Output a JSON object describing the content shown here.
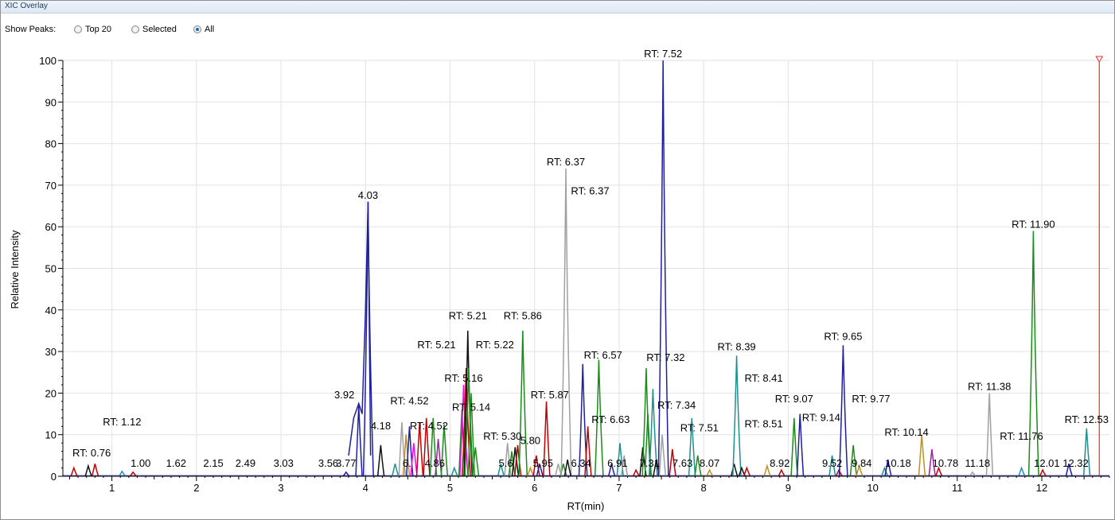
{
  "window": {
    "title": "XIC Overlay"
  },
  "controls": {
    "show_peaks_label": "Show Peaks:",
    "options": [
      {
        "label": "Top 20",
        "selected": false
      },
      {
        "label": "Selected",
        "selected": false
      },
      {
        "label": "All",
        "selected": true
      }
    ]
  },
  "chart_data": {
    "type": "line",
    "xlabel": "RT(min)",
    "ylabel": "Relative Intensity",
    "xlim": [
      0.42,
      12.8
    ],
    "ylim": [
      0,
      100
    ],
    "x_ticks": [
      "1",
      "2",
      "3",
      "4",
      "5",
      "6",
      "7",
      "8",
      "9",
      "10",
      "11",
      "12"
    ],
    "y_ticks": [
      "0",
      "10",
      "20",
      "30",
      "40",
      "50",
      "60",
      "70",
      "80",
      "90",
      "100"
    ],
    "grid": true,
    "marker_line_rt": 12.68,
    "peaks": [
      {
        "rt": 0.55,
        "h": 2,
        "c": "#c00000"
      },
      {
        "rt": 0.72,
        "h": 2.5,
        "c": "#111111"
      },
      {
        "rt": 0.8,
        "h": 3,
        "c": "#c00000"
      },
      {
        "rt": 1.12,
        "h": 1.2,
        "c": "#2e8bc0"
      },
      {
        "rt": 1.25,
        "h": 1,
        "c": "#c00000"
      },
      {
        "rt": 3.77,
        "h": 1,
        "c": "#1f1fa0"
      },
      {
        "rt": 3.92,
        "h": 17,
        "c": "#1f1fa0"
      },
      {
        "rt": 4.03,
        "h": 66,
        "c": "#1f1fa0"
      },
      {
        "rt": 4.18,
        "h": 7.5,
        "c": "#111111"
      },
      {
        "rt": 4.35,
        "h": 3,
        "c": "#1f9090"
      },
      {
        "rt": 4.43,
        "h": 13,
        "c": "#a0a0a0"
      },
      {
        "rt": 4.48,
        "h": 10,
        "c": "#c09020"
      },
      {
        "rt": 4.52,
        "h": 12,
        "c": "#1f1fa0"
      },
      {
        "rt": 4.57,
        "h": 8,
        "c": "#ff00ff"
      },
      {
        "rt": 4.64,
        "h": 13,
        "c": "#c00000"
      },
      {
        "rt": 4.72,
        "h": 14,
        "c": "#c00000"
      },
      {
        "rt": 4.8,
        "h": 14,
        "c": "#1a8c1a"
      },
      {
        "rt": 4.86,
        "h": 9,
        "c": "#a020a0"
      },
      {
        "rt": 4.93,
        "h": 12.5,
        "c": "#1a8c1a"
      },
      {
        "rt": 5.05,
        "h": 2,
        "c": "#1f9090"
      },
      {
        "rt": 5.14,
        "h": 16,
        "c": "#1a8c1a"
      },
      {
        "rt": 5.16,
        "h": 22,
        "c": "#ff00ff"
      },
      {
        "rt": 5.19,
        "h": 26,
        "c": "#c00000"
      },
      {
        "rt": 5.21,
        "h": 35,
        "c": "#111111"
      },
      {
        "rt": 5.22,
        "h": 26,
        "c": "#1a8c1a"
      },
      {
        "rt": 5.25,
        "h": 20,
        "c": "#1a8c1a"
      },
      {
        "rt": 5.3,
        "h": 7,
        "c": "#1a8c1a"
      },
      {
        "rt": 5.6,
        "h": 3,
        "c": "#1f9090"
      },
      {
        "rt": 5.68,
        "h": 8,
        "c": "#a0a0a0"
      },
      {
        "rt": 5.73,
        "h": 6,
        "c": "#1a8c1a"
      },
      {
        "rt": 5.77,
        "h": 7,
        "c": "#111111"
      },
      {
        "rt": 5.8,
        "h": 7.5,
        "c": "#c00000"
      },
      {
        "rt": 5.86,
        "h": 35,
        "c": "#1a8c1a"
      },
      {
        "rt": 5.95,
        "h": 2,
        "c": "#c09020"
      },
      {
        "rt": 6.02,
        "h": 5,
        "c": "#c00000"
      },
      {
        "rt": 6.06,
        "h": 3,
        "c": "#1f1fa0"
      },
      {
        "rt": 6.14,
        "h": 18,
        "c": "#c00000"
      },
      {
        "rt": 6.28,
        "h": 3,
        "c": "#a0a0a0"
      },
      {
        "rt": 6.34,
        "h": 3,
        "c": "#1a8c1a"
      },
      {
        "rt": 6.37,
        "h": 74,
        "c": "#a0a0a0"
      },
      {
        "rt": 6.39,
        "h": 4,
        "c": "#111111"
      },
      {
        "rt": 6.57,
        "h": 27,
        "c": "#1f1fa0"
      },
      {
        "rt": 6.63,
        "h": 12,
        "c": "#c00000"
      },
      {
        "rt": 6.76,
        "h": 28,
        "c": "#1a8c1a"
      },
      {
        "rt": 6.91,
        "h": 3,
        "c": "#1f1fa0"
      },
      {
        "rt": 7.01,
        "h": 8,
        "c": "#1f9090"
      },
      {
        "rt": 7.06,
        "h": 5,
        "c": "#a0a0a0"
      },
      {
        "rt": 7.2,
        "h": 1.5,
        "c": "#c00000"
      },
      {
        "rt": 7.28,
        "h": 7,
        "c": "#111111"
      },
      {
        "rt": 7.32,
        "h": 26,
        "c": "#1a8c1a"
      },
      {
        "rt": 7.34,
        "h": 15,
        "c": "#1a8c1a"
      },
      {
        "rt": 7.4,
        "h": 21,
        "c": "#1f9090"
      },
      {
        "rt": 7.44,
        "h": 4,
        "c": "#111111"
      },
      {
        "rt": 7.51,
        "h": 10,
        "c": "#a0a0a0"
      },
      {
        "rt": 7.52,
        "h": 100,
        "c": "#1f1fa0"
      },
      {
        "rt": 7.63,
        "h": 6.5,
        "c": "#c00000"
      },
      {
        "rt": 7.86,
        "h": 14,
        "c": "#1f9090"
      },
      {
        "rt": 7.93,
        "h": 5,
        "c": "#1a8c1a"
      },
      {
        "rt": 8.07,
        "h": 1.5,
        "c": "#c09020"
      },
      {
        "rt": 8.36,
        "h": 3,
        "c": "#111111"
      },
      {
        "rt": 8.39,
        "h": 29,
        "c": "#1f9090"
      },
      {
        "rt": 8.45,
        "h": 2,
        "c": "#111111"
      },
      {
        "rt": 8.51,
        "h": 2,
        "c": "#c00000"
      },
      {
        "rt": 8.75,
        "h": 2.5,
        "c": "#c09020"
      },
      {
        "rt": 8.92,
        "h": 1.5,
        "c": "#c00000"
      },
      {
        "rt": 9.07,
        "h": 14,
        "c": "#1a8c1a"
      },
      {
        "rt": 9.14,
        "h": 15,
        "c": "#1f1fa0"
      },
      {
        "rt": 9.52,
        "h": 5,
        "c": "#1f9090"
      },
      {
        "rt": 9.6,
        "h": 1.5,
        "c": "#c00000"
      },
      {
        "rt": 9.65,
        "h": 31.5,
        "c": "#1f1fa0"
      },
      {
        "rt": 9.77,
        "h": 7.5,
        "c": "#1a8c1a"
      },
      {
        "rt": 9.84,
        "h": 2.5,
        "c": "#c09020"
      },
      {
        "rt": 10.14,
        "h": 2,
        "c": "#1f9090"
      },
      {
        "rt": 10.18,
        "h": 4,
        "c": "#1f1fa0"
      },
      {
        "rt": 10.58,
        "h": 10,
        "c": "#c09020"
      },
      {
        "rt": 10.7,
        "h": 6.5,
        "c": "#a020a0"
      },
      {
        "rt": 10.78,
        "h": 2,
        "c": "#c00000"
      },
      {
        "rt": 11.18,
        "h": 1,
        "c": "#a0a0a0"
      },
      {
        "rt": 11.38,
        "h": 20,
        "c": "#a0a0a0"
      },
      {
        "rt": 11.76,
        "h": 2,
        "c": "#2e8bc0"
      },
      {
        "rt": 11.9,
        "h": 59,
        "c": "#1a8c1a"
      },
      {
        "rt": 12.01,
        "h": 1.5,
        "c": "#c00000"
      },
      {
        "rt": 12.32,
        "h": 3,
        "c": "#1f1fa0"
      },
      {
        "rt": 12.53,
        "h": 11.5,
        "c": "#1f9090"
      }
    ],
    "labels": [
      {
        "text": "RT: 7.52",
        "rt": 7.52,
        "h": 100,
        "anchor": "middle"
      },
      {
        "text": "RT: 6.37",
        "rt": 6.37,
        "h": 74,
        "anchor": "middle"
      },
      {
        "text": "RT: 6.37",
        "rt": 6.43,
        "h": 67,
        "anchor": "start"
      },
      {
        "text": "4.03",
        "rt": 4.03,
        "h": 66,
        "anchor": "middle"
      },
      {
        "text": "RT: 11.90",
        "rt": 11.9,
        "h": 59,
        "anchor": "middle"
      },
      {
        "text": "RT: 5.21",
        "rt": 5.21,
        "h": 37,
        "anchor": "middle"
      },
      {
        "text": "RT: 5.86",
        "rt": 5.86,
        "h": 37,
        "anchor": "middle"
      },
      {
        "text": "RT: 5.21",
        "rt": 4.84,
        "h": 30,
        "anchor": "middle"
      },
      {
        "text": "RT: 5.22",
        "rt": 5.53,
        "h": 30,
        "anchor": "middle"
      },
      {
        "text": "RT: 8.39",
        "rt": 8.39,
        "h": 29.5,
        "anchor": "middle"
      },
      {
        "text": "RT: 9.65",
        "rt": 9.65,
        "h": 32,
        "anchor": "middle"
      },
      {
        "text": "RT: 6.57",
        "rt": 6.81,
        "h": 27.5,
        "anchor": "middle"
      },
      {
        "text": "RT: 7.32",
        "rt": 7.55,
        "h": 27,
        "anchor": "middle"
      },
      {
        "text": "RT: 5.16",
        "rt": 5.16,
        "h": 22,
        "anchor": "middle"
      },
      {
        "text": "RT: 8.41",
        "rt": 8.71,
        "h": 22,
        "anchor": "middle"
      },
      {
        "text": "RT: 11.38",
        "rt": 11.38,
        "h": 20,
        "anchor": "middle"
      },
      {
        "text": "3.92",
        "rt": 3.75,
        "h": 18,
        "anchor": "middle"
      },
      {
        "text": "RT: 5.87",
        "rt": 6.18,
        "h": 18,
        "anchor": "middle"
      },
      {
        "text": "RT: 9.07",
        "rt": 9.07,
        "h": 17,
        "anchor": "middle"
      },
      {
        "text": "RT: 9.77",
        "rt": 9.98,
        "h": 17,
        "anchor": "middle"
      },
      {
        "text": "RT: 4.52",
        "rt": 4.52,
        "h": 16.5,
        "anchor": "middle"
      },
      {
        "text": "RT: 7.34",
        "rt": 7.68,
        "h": 15.5,
        "anchor": "middle"
      },
      {
        "text": "RT: 5.14",
        "rt": 5.25,
        "h": 15,
        "anchor": "middle"
      },
      {
        "text": "RT: 9.14",
        "rt": 9.39,
        "h": 12.5,
        "anchor": "middle"
      },
      {
        "text": "RT: 12.53",
        "rt": 12.53,
        "h": 12,
        "anchor": "middle"
      },
      {
        "text": "RT: 6.63",
        "rt": 6.9,
        "h": 12,
        "anchor": "middle"
      },
      {
        "text": "RT: 1.12",
        "rt": 1.12,
        "h": 11.5,
        "anchor": "middle"
      },
      {
        "text": "4.18",
        "rt": 4.3,
        "h": 10.5,
        "anchor": "end"
      },
      {
        "text": "RT: 4.52",
        "rt": 4.75,
        "h": 10.5,
        "anchor": "middle"
      },
      {
        "text": "RT: 7.51",
        "rt": 7.95,
        "h": 10,
        "anchor": "middle"
      },
      {
        "text": "RT: 8.51",
        "rt": 8.71,
        "h": 11,
        "anchor": "middle"
      },
      {
        "text": "RT: 10.14",
        "rt": 10.4,
        "h": 9,
        "anchor": "middle"
      },
      {
        "text": "RT: 11.76",
        "rt": 11.76,
        "h": 8,
        "anchor": "middle"
      },
      {
        "text": "RT: 5.30",
        "rt": 5.62,
        "h": 8,
        "anchor": "middle"
      },
      {
        "text": "5.80",
        "rt": 5.95,
        "h": 7,
        "anchor": "middle"
      },
      {
        "text": "RT: 0.76",
        "rt": 0.76,
        "h": 4,
        "anchor": "middle"
      },
      {
        "text": "1.00",
        "rt": 1.34,
        "h": 1.5,
        "anchor": "middle"
      },
      {
        "text": "1.62",
        "rt": 1.76,
        "h": 1.5,
        "anchor": "middle"
      },
      {
        "text": "2.15",
        "rt": 2.2,
        "h": 1.5,
        "anchor": "middle"
      },
      {
        "text": "2.49",
        "rt": 2.58,
        "h": 1.5,
        "anchor": "middle"
      },
      {
        "text": "3.03",
        "rt": 3.03,
        "h": 1.5,
        "anchor": "middle"
      },
      {
        "text": "3.56",
        "rt": 3.56,
        "h": 1.5,
        "anchor": "middle"
      },
      {
        "text": "3.77",
        "rt": 3.77,
        "h": 1.5,
        "anchor": "middle"
      },
      {
        "text": "6.",
        "rt": 4.49,
        "h": 1.5,
        "anchor": "middle"
      },
      {
        "text": "4.86",
        "rt": 4.82,
        "h": 1.5,
        "anchor": "middle"
      },
      {
        "text": "5.6",
        "rt": 5.66,
        "h": 1.5,
        "anchor": "middle"
      },
      {
        "text": "5.95",
        "rt": 6.1,
        "h": 1.5,
        "anchor": "middle"
      },
      {
        "text": "6.34",
        "rt": 6.55,
        "h": 1.5,
        "anchor": "middle"
      },
      {
        "text": "6.91",
        "rt": 6.98,
        "h": 1.5,
        "anchor": "middle"
      },
      {
        "text": "7.31",
        "rt": 7.36,
        "h": 1.5,
        "anchor": "middle"
      },
      {
        "text": "7.63",
        "rt": 7.75,
        "h": 1.5,
        "anchor": "middle"
      },
      {
        "text": "8.07",
        "rt": 8.07,
        "h": 1.5,
        "anchor": "middle"
      },
      {
        "text": "8.92",
        "rt": 8.9,
        "h": 1.5,
        "anchor": "middle"
      },
      {
        "text": "9.52",
        "rt": 9.52,
        "h": 1.5,
        "anchor": "middle"
      },
      {
        "text": "9.84",
        "rt": 9.87,
        "h": 1.5,
        "anchor": "middle"
      },
      {
        "text": "10.18",
        "rt": 10.3,
        "h": 1.5,
        "anchor": "middle"
      },
      {
        "text": "10.78",
        "rt": 10.86,
        "h": 1.5,
        "anchor": "middle"
      },
      {
        "text": "11.18",
        "rt": 11.24,
        "h": 1.5,
        "anchor": "middle"
      },
      {
        "text": "12.01",
        "rt": 12.06,
        "h": 1.5,
        "anchor": "middle"
      },
      {
        "text": "12.32",
        "rt": 12.4,
        "h": 1.5,
        "anchor": "middle"
      }
    ]
  }
}
